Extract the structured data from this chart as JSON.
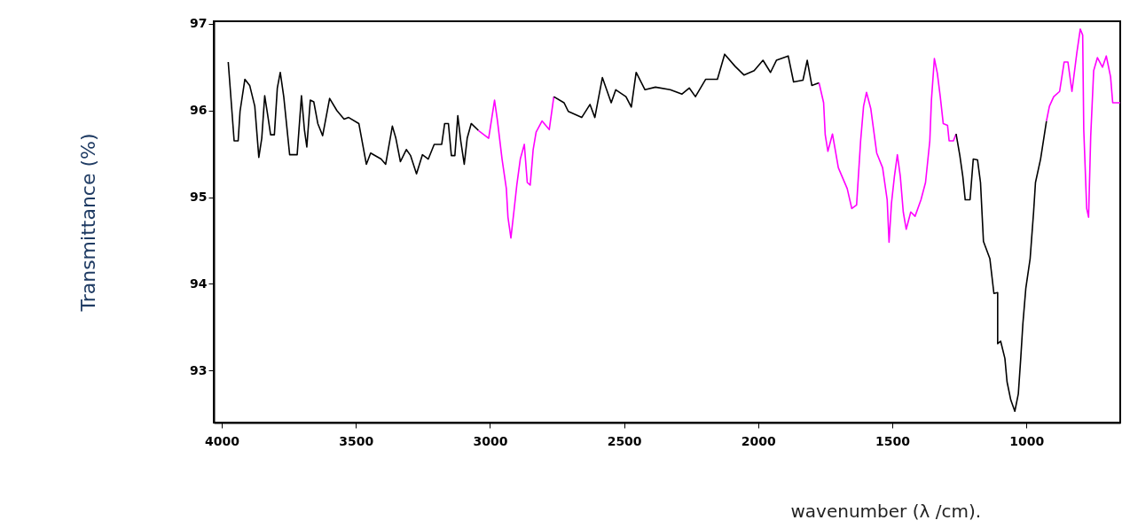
{
  "chart_data": {
    "type": "line",
    "xlabel": "wavenumber (λ /cm).",
    "ylabel": "Transmittance (%)",
    "xlim": [
      4030,
      650
    ],
    "ylim": [
      92.4,
      97.03
    ],
    "xticks": [
      4000,
      3500,
      3000,
      2500,
      2000,
      1500,
      1000
    ],
    "yticks": [
      93,
      94,
      95,
      96,
      97
    ],
    "series": [
      {
        "color": "#000000",
        "x": [
          3976,
          3967,
          3954,
          3939,
          3932,
          3914,
          3896,
          3877,
          3862,
          3851,
          3840,
          3829,
          3818,
          3804,
          3793,
          3782,
          3769,
          3747,
          3719,
          3703,
          3692,
          3683,
          3670,
          3657,
          3642,
          3624,
          3598,
          3571,
          3544,
          3527,
          3489,
          3461,
          3445,
          3406,
          3389,
          3364,
          3351,
          3334,
          3312,
          3296,
          3274,
          3252,
          3230,
          3208,
          3180,
          3169,
          3155,
          3144,
          3131,
          3120,
          3109,
          3096,
          3085,
          3070,
          3043
        ],
        "values": [
          96.56,
          96.19,
          95.65,
          95.65,
          95.99,
          96.36,
          96.29,
          96.05,
          95.46,
          95.68,
          96.17,
          95.95,
          95.72,
          95.72,
          96.26,
          96.44,
          96.16,
          95.49,
          95.49,
          96.17,
          95.78,
          95.58,
          96.12,
          96.1,
          95.85,
          95.71,
          96.14,
          96.0,
          95.9,
          95.92,
          95.85,
          95.38,
          95.51,
          95.44,
          95.38,
          95.82,
          95.68,
          95.41,
          95.55,
          95.48,
          95.27,
          95.49,
          95.44,
          95.61,
          95.61,
          95.85,
          95.85,
          95.48,
          95.48,
          95.94,
          95.65,
          95.38,
          95.68,
          95.85,
          95.77
        ]
      },
      {
        "color": "#ff00ff",
        "x": [
          3043,
          3005,
          2983,
          2972,
          2955,
          2939,
          2933,
          2922,
          2911,
          2900,
          2887,
          2872,
          2861,
          2850,
          2839,
          2828,
          2806,
          2779,
          2762
        ],
        "values": [
          95.77,
          95.68,
          96.12,
          95.88,
          95.44,
          95.1,
          94.77,
          94.53,
          94.83,
          95.14,
          95.44,
          95.61,
          95.17,
          95.14,
          95.55,
          95.75,
          95.88,
          95.78,
          96.16
        ]
      },
      {
        "color": "#000000",
        "x": [
          2762,
          2724,
          2708,
          2658,
          2627,
          2609,
          2581,
          2548,
          2531,
          2493,
          2473,
          2455,
          2422,
          2383,
          2328,
          2284,
          2257,
          2234,
          2196,
          2152,
          2125,
          2086,
          2053,
          2015,
          1982,
          1954,
          1932,
          1888,
          1868,
          1833,
          1817,
          1800,
          1773
        ],
        "values": [
          96.16,
          96.09,
          95.99,
          95.92,
          96.07,
          95.92,
          96.38,
          96.09,
          96.24,
          96.16,
          96.04,
          96.44,
          96.24,
          96.27,
          96.24,
          96.19,
          96.26,
          96.16,
          96.36,
          96.36,
          96.65,
          96.51,
          96.41,
          96.46,
          96.58,
          96.44,
          96.58,
          96.63,
          96.33,
          96.35,
          96.58,
          96.29,
          96.32
        ]
      },
      {
        "color": "#ff00ff",
        "x": [
          1773,
          1756,
          1750,
          1740,
          1723,
          1701,
          1668,
          1651,
          1633,
          1618,
          1607,
          1596,
          1580,
          1558,
          1536,
          1519,
          1512,
          1503,
          1492,
          1481,
          1470,
          1459,
          1448,
          1431,
          1415,
          1393,
          1376,
          1360,
          1354,
          1343,
          1332,
          1321,
          1310,
          1294,
          1288,
          1272,
          1262
        ],
        "values": [
          96.32,
          96.09,
          95.72,
          95.53,
          95.73,
          95.34,
          95.1,
          94.87,
          94.91,
          95.65,
          96.05,
          96.21,
          96.02,
          95.51,
          95.34,
          94.97,
          94.48,
          94.93,
          95.24,
          95.49,
          95.24,
          94.83,
          94.63,
          94.83,
          94.78,
          94.97,
          95.17,
          95.65,
          96.12,
          96.6,
          96.43,
          96.16,
          95.85,
          95.83,
          95.65,
          95.65,
          95.73
        ]
      },
      {
        "color": "#000000",
        "x": [
          1262,
          1248,
          1237,
          1228,
          1210,
          1198,
          1182,
          1171,
          1160,
          1136,
          1121,
          1107,
          1107,
          1096,
          1080,
          1072,
          1058,
          1043,
          1030,
          1021,
          1013,
          1002,
          986,
          973,
          966,
          947,
          925
        ],
        "values": [
          95.73,
          95.48,
          95.24,
          94.97,
          94.97,
          95.44,
          95.43,
          95.17,
          94.49,
          94.29,
          93.89,
          93.9,
          93.31,
          93.34,
          93.14,
          92.87,
          92.66,
          92.53,
          92.73,
          93.14,
          93.54,
          93.95,
          94.29,
          94.83,
          95.17,
          95.44,
          95.88
        ]
      },
      {
        "color": "#ff00ff",
        "x": [
          925,
          914,
          898,
          876,
          859,
          845,
          830,
          812,
          799,
          790,
          786,
          775,
          768,
          760,
          749,
          735,
          716,
          702,
          686,
          678,
          650
        ],
        "values": [
          95.88,
          96.05,
          96.16,
          96.22,
          96.56,
          96.56,
          96.22,
          96.66,
          96.94,
          96.87,
          95.78,
          94.87,
          94.77,
          95.71,
          96.46,
          96.61,
          96.5,
          96.63,
          96.39,
          96.09,
          96.09
        ]
      }
    ]
  }
}
